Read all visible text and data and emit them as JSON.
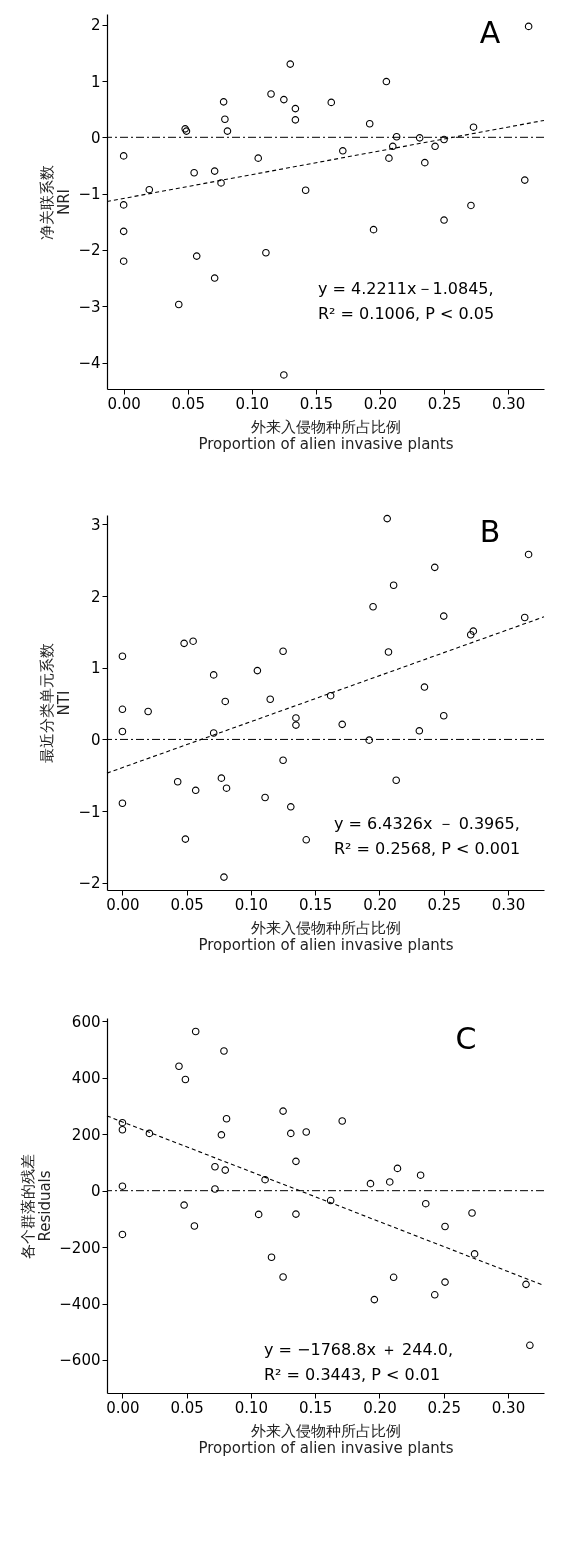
{
  "chart_data": [
    {
      "type": "scatter",
      "title": "A",
      "ylabel": "净关联系数\nNRI",
      "xlabel": "外来入侵物种所占比例\nProportion of alien invasive plants",
      "xlim": [
        -0.013,
        0.328
      ],
      "ylim": [
        -4.47,
        2.19
      ],
      "xticks": [
        {
          "value": 0,
          "label": "0.00"
        },
        {
          "value": 0.05,
          "label": "0.05"
        },
        {
          "value": 0.1,
          "label": "0.10"
        },
        {
          "value": 0.15,
          "label": "0.15"
        },
        {
          "value": 0.2,
          "label": "0.20"
        },
        {
          "value": 0.25,
          "label": "0.25"
        },
        {
          "value": 0.3,
          "label": "0.30"
        }
      ],
      "yticks": [
        2,
        1,
        0,
        -1,
        -2,
        -3,
        -4
      ],
      "grid": false,
      "marker": "circle",
      "series": [
        {
          "type": "scatter",
          "color": "#000000",
          "x": [
            0,
            0,
            0,
            0,
            0.02,
            0.043,
            0.048,
            0.049,
            0.055,
            0.057,
            0.071,
            0.071,
            0.076,
            0.078,
            0.079,
            0.081,
            0.105,
            0.111,
            0.115,
            0.125,
            0.125,
            0.13,
            0.134,
            0.134,
            0.142,
            0.162,
            0.171,
            0.192,
            0.195,
            0.205,
            0.207,
            0.21,
            0.213,
            0.231,
            0.235,
            0.243,
            0.25,
            0.25,
            0.271,
            0.273,
            0.313,
            0.316
          ],
          "values": [
            -0.33,
            -1.2,
            -1.67,
            -2.2,
            -0.93,
            -2.97,
            0.15,
            0.11,
            -0.63,
            -2.11,
            -0.6,
            -2.5,
            -0.81,
            0.63,
            0.32,
            0.11,
            -0.37,
            -2.05,
            0.77,
            0.67,
            -4.22,
            1.3,
            0.51,
            0.31,
            -0.94,
            0.62,
            -0.24,
            0.24,
            -1.64,
            0.99,
            -0.37,
            -0.16,
            0.01,
            -0.01,
            -0.45,
            -0.16,
            -0.04,
            -1.47,
            -1.21,
            0.18,
            -0.76,
            1.97
          ]
        },
        {
          "type": "line",
          "color": "#000000",
          "line_style": "dashed",
          "marker": "none",
          "x": [
            -0.013,
            0.328
          ],
          "values": [
            -1.14,
            0.3
          ]
        }
      ],
      "ref_lines": [
        {
          "axis": "y",
          "value": 0,
          "color": "#000000",
          "line_style": "dashdot"
        }
      ],
      "annotations": [
        "y = 4.2211x－1.0845,",
        "R² = 0.1006, P < 0.05"
      ]
    },
    {
      "type": "scatter",
      "title": "B",
      "ylabel": "最近分类单元系数\nNTI",
      "xlabel": "外来入侵物种所占比例\nProportion of alien invasive plants",
      "xlim": [
        -0.012,
        0.328
      ],
      "ylim": [
        -2.1,
        3.13
      ],
      "xticks": [
        {
          "value": 0,
          "label": "0.00"
        },
        {
          "value": 0.05,
          "label": "0.05"
        },
        {
          "value": 0.1,
          "label": "0.10"
        },
        {
          "value": 0.15,
          "label": "0.15"
        },
        {
          "value": 0.2,
          "label": "0.20"
        },
        {
          "value": 0.25,
          "label": "0.25"
        },
        {
          "value": 0.3,
          "label": "0.30"
        }
      ],
      "yticks": [
        3,
        2,
        1,
        0,
        -1,
        -2
      ],
      "grid": false,
      "marker": "circle",
      "series": [
        {
          "type": "scatter",
          "color": "#000000",
          "x": [
            0,
            0,
            0,
            0,
            0.02,
            0.043,
            0.048,
            0.049,
            0.055,
            0.057,
            0.071,
            0.071,
            0.077,
            0.079,
            0.08,
            0.081,
            0.105,
            0.111,
            0.115,
            0.125,
            0.125,
            0.131,
            0.135,
            0.135,
            0.143,
            0.162,
            0.171,
            0.192,
            0.195,
            0.206,
            0.207,
            0.211,
            0.213,
            0.231,
            0.235,
            0.243,
            0.25,
            0.25,
            0.271,
            0.273,
            0.313,
            0.316
          ],
          "values": [
            1.16,
            0.42,
            0.11,
            -0.89,
            0.39,
            -0.59,
            1.34,
            -1.39,
            1.37,
            -0.71,
            0.9,
            0.09,
            -0.54,
            -1.92,
            0.53,
            -0.68,
            0.96,
            -0.81,
            0.56,
            1.23,
            -0.29,
            -0.94,
            0.3,
            0.2,
            -1.4,
            0.61,
            0.21,
            -0.01,
            1.85,
            3.08,
            1.22,
            2.15,
            -0.57,
            0.12,
            0.73,
            2.4,
            0.33,
            1.72,
            1.46,
            1.51,
            1.7,
            2.58
          ]
        },
        {
          "type": "line",
          "color": "#000000",
          "line_style": "dashed",
          "marker": "none",
          "x": [
            -0.012,
            0.328
          ],
          "values": [
            -0.47,
            1.71
          ]
        }
      ],
      "ref_lines": [
        {
          "axis": "y",
          "value": 0,
          "color": "#000000",
          "line_style": "dashdot"
        }
      ],
      "annotations": [
        "y = 6.4326x － 0.3965,",
        "R² = 0.2568, P < 0.001"
      ]
    },
    {
      "type": "scatter",
      "title": "C",
      "ylabel": "各个群落的残差\nResiduals",
      "xlabel": "外来入侵物种所占比例\nProportion of alien invasive plants",
      "xlim": [
        -0.012,
        0.328
      ],
      "ylim": [
        -717,
        612
      ],
      "xticks": [
        {
          "value": 0,
          "label": "0.00"
        },
        {
          "value": 0.05,
          "label": "0.05"
        },
        {
          "value": 0.1,
          "label": "0.10"
        },
        {
          "value": 0.15,
          "label": "0.15"
        },
        {
          "value": 0.2,
          "label": "0.20"
        },
        {
          "value": 0.25,
          "label": "0.25"
        },
        {
          "value": 0.3,
          "label": "0.30"
        }
      ],
      "yticks": [
        600,
        400,
        200,
        0,
        -200,
        -400,
        -600
      ],
      "grid": false,
      "marker": "circle",
      "series": [
        {
          "type": "scatter",
          "color": "#000000",
          "x": [
            0,
            0,
            0,
            0,
            0.021,
            0.044,
            0.048,
            0.049,
            0.056,
            0.057,
            0.072,
            0.072,
            0.077,
            0.079,
            0.08,
            0.081,
            0.106,
            0.111,
            0.116,
            0.125,
            0.125,
            0.131,
            0.135,
            0.135,
            0.143,
            0.162,
            0.171,
            0.193,
            0.196,
            0.208,
            0.211,
            0.214,
            0.232,
            0.236,
            0.243,
            0.251,
            0.251,
            0.272,
            0.274,
            0.314,
            0.317
          ],
          "values": [
            241,
            216,
            16,
            -155,
            203,
            441,
            -51,
            394,
            -125,
            564,
            85,
            6,
            198,
            495,
            73,
            255,
            -84,
            39,
            -236,
            282,
            -306,
            203,
            104,
            -83,
            208,
            -35,
            247,
            25,
            -386,
            31,
            -307,
            79,
            55,
            -46,
            -369,
            -127,
            -324,
            -79,
            -224,
            -332,
            -548
          ]
        },
        {
          "type": "line",
          "color": "#000000",
          "line_style": "dashed",
          "marker": "none",
          "x": [
            -0.012,
            0.328
          ],
          "values": [
            265,
            -336
          ]
        }
      ],
      "ref_lines": [
        {
          "axis": "y",
          "value": 0,
          "color": "#000000",
          "line_style": "dashdot"
        }
      ],
      "annotations": [
        "y = −1768.8x ＋ 244.0,",
        "R² = 0.3443, P < 0.01"
      ]
    }
  ]
}
